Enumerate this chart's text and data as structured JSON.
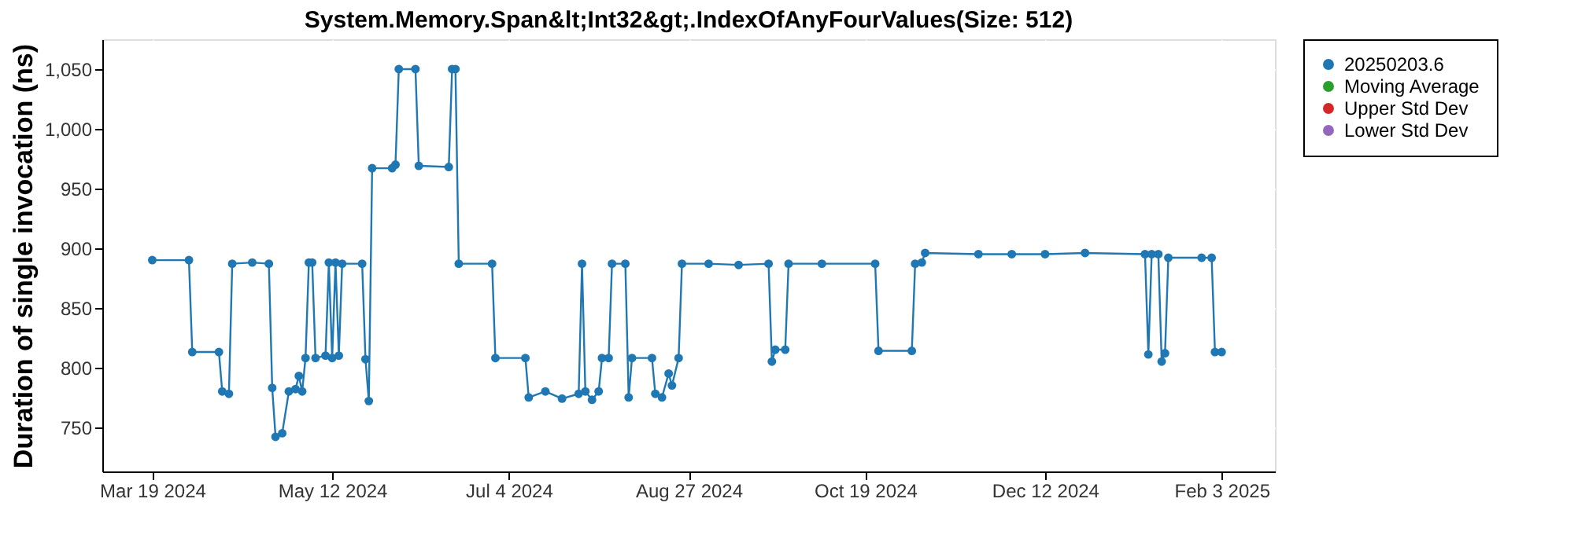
{
  "chart_data": {
    "type": "line",
    "title": "System.Memory.Span&lt;Int32&gt;.IndexOfAnyFourValues(Size: 512)",
    "ylabel": "Duration of single invocation (ns)",
    "xlim": [
      "2024-03-04",
      "2025-02-19"
    ],
    "xticks": [
      {
        "value": "2024-03-19",
        "label": "Mar 19 2024"
      },
      {
        "value": "2024-05-12",
        "label": "May 12 2024"
      },
      {
        "value": "2024-07-04",
        "label": "Jul 4 2024"
      },
      {
        "value": "2024-08-27",
        "label": "Aug 27 2024"
      },
      {
        "value": "2024-10-19",
        "label": "Oct 19 2024"
      },
      {
        "value": "2024-12-12",
        "label": "Dec 12 2024"
      },
      {
        "value": "2025-02-03",
        "label": "Feb 3 2025"
      }
    ],
    "ylim": [
      713,
      1075
    ],
    "yticks": [
      750,
      800,
      850,
      900,
      950,
      {
        "value": 1000,
        "label": "1,000"
      },
      {
        "value": 1050,
        "label": "1,050"
      }
    ],
    "grid": true,
    "legend": "right",
    "marker": "circle",
    "line_style": "solid",
    "series": [
      {
        "name": "20250203.6",
        "color": "#1f77b4",
        "x": [
          "2024-03-19",
          "2024-03-30",
          "2024-03-31",
          "2024-04-08",
          "2024-04-09",
          "2024-04-11",
          "2024-04-12",
          "2024-04-18",
          "2024-04-23",
          "2024-04-24",
          "2024-04-25",
          "2024-04-27",
          "2024-04-29",
          "2024-05-01",
          "2024-05-02",
          "2024-05-03",
          "2024-05-04",
          "2024-05-05",
          "2024-05-06",
          "2024-05-07",
          "2024-05-10",
          "2024-05-11",
          "2024-05-12",
          "2024-05-13",
          "2024-05-14",
          "2024-05-15",
          "2024-05-21",
          "2024-05-22",
          "2024-05-23",
          "2024-05-24",
          "2024-05-30",
          "2024-05-31",
          "2024-06-01",
          "2024-06-06",
          "2024-06-07",
          "2024-06-16",
          "2024-06-17",
          "2024-06-18",
          "2024-06-19",
          "2024-06-29",
          "2024-06-30",
          "2024-07-09",
          "2024-07-10",
          "2024-07-15",
          "2024-07-20",
          "2024-07-25",
          "2024-07-26",
          "2024-07-27",
          "2024-07-29",
          "2024-07-31",
          "2024-08-01",
          "2024-08-03",
          "2024-08-04",
          "2024-08-08",
          "2024-08-09",
          "2024-08-10",
          "2024-08-16",
          "2024-08-17",
          "2024-08-19",
          "2024-08-21",
          "2024-08-22",
          "2024-08-24",
          "2024-08-25",
          "2024-09-02",
          "2024-09-11",
          "2024-09-20",
          "2024-09-21",
          "2024-09-22",
          "2024-09-25",
          "2024-09-26",
          "2024-10-06",
          "2024-10-22",
          "2024-10-23",
          "2024-11-02",
          "2024-11-03",
          "2024-11-05",
          "2024-11-06",
          "2024-11-22",
          "2024-12-02",
          "2024-12-12",
          "2024-12-24",
          "2025-01-11",
          "2025-01-12",
          "2025-01-13",
          "2025-01-15",
          "2025-01-16",
          "2025-01-17",
          "2025-01-18",
          "2025-01-28",
          "2025-01-31",
          "2025-02-01",
          "2025-02-03"
        ],
        "values": [
          890,
          890,
          813,
          813,
          780,
          778,
          887,
          888,
          887,
          783,
          742,
          745,
          780,
          782,
          793,
          780,
          808,
          888,
          888,
          808,
          810,
          888,
          808,
          888,
          810,
          887,
          887,
          807,
          772,
          967,
          967,
          970,
          1050,
          1050,
          969,
          968,
          1050,
          1050,
          887,
          887,
          808,
          808,
          775,
          780,
          774,
          778,
          887,
          780,
          773,
          780,
          808,
          808,
          887,
          887,
          775,
          808,
          808,
          778,
          775,
          795,
          785,
          808,
          887,
          887,
          886,
          887,
          805,
          815,
          815,
          887,
          887,
          887,
          814,
          814,
          887,
          888,
          896,
          895,
          895,
          895,
          896,
          895,
          811,
          895,
          895,
          805,
          812,
          892,
          892,
          892,
          813,
          813
        ]
      },
      {
        "name": "Moving Average",
        "color": "#2ca02c"
      },
      {
        "name": "Upper Std Dev",
        "color": "#d62728"
      },
      {
        "name": "Lower Std Dev",
        "color": "#9467bd"
      }
    ]
  }
}
